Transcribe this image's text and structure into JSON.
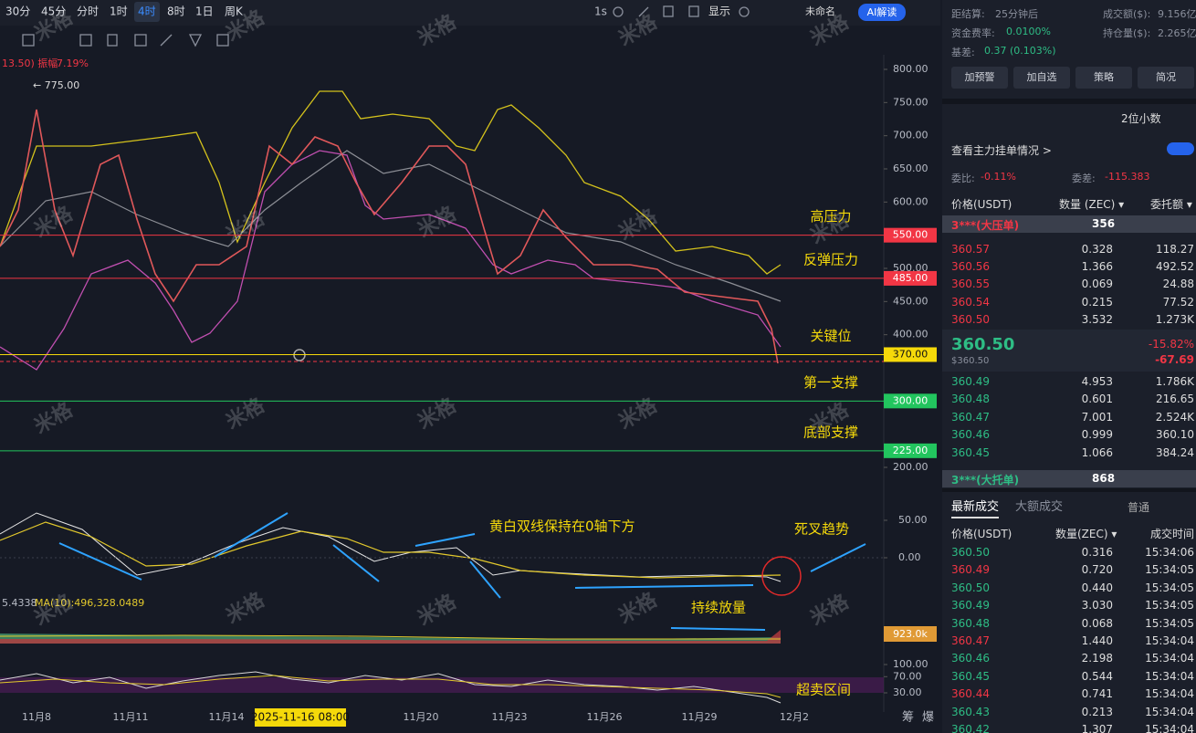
{
  "toolbar": {
    "intervals": [
      "30分",
      "45分",
      "分时",
      "1时",
      "4时",
      "8时",
      "1日",
      "周K"
    ],
    "active": 4,
    "speed": "1s",
    "display": "显示",
    "layout": "未命名",
    "ai": "AI解读"
  },
  "chart": {
    "info": "13.50)  振幅",
    "amplitude": "7.19%",
    "high_label": "← 775.00",
    "watermark": "米格",
    "price_lim": [
      800,
      200
    ],
    "price_ticks": [
      {
        "value": 800,
        "label": "800.00"
      },
      {
        "value": 750,
        "label": "750.00"
      },
      {
        "value": 700,
        "label": "700.00"
      },
      {
        "value": 650,
        "label": "650.00"
      },
      {
        "value": 600,
        "label": "600.00"
      },
      {
        "value": 500,
        "label": "500.00"
      },
      {
        "value": 450,
        "label": "450.00"
      },
      {
        "value": 400,
        "label": "400.00"
      },
      {
        "value": 200,
        "label": "200.00"
      }
    ],
    "levels": [
      {
        "value": 550,
        "label": "550.00",
        "name": "高压力",
        "color": "#f23645"
      },
      {
        "value": 485,
        "label": "485.00",
        "name": "反弹压力",
        "color": "#f23645"
      },
      {
        "value": 370,
        "label": "370.00",
        "name": "关键位",
        "color": "#f5d90a"
      },
      {
        "value": 300,
        "label": "300.00",
        "name": "第一支撑",
        "color": "#22c55e"
      },
      {
        "value": 225,
        "label": "225.00",
        "name": "底部支撑",
        "color": "#22c55e"
      }
    ],
    "macd_ticks": [
      {
        "value": 50,
        "label": "50.00"
      },
      {
        "value": 0,
        "label": "0.00"
      }
    ],
    "annotations": {
      "macd": "黄白双线保持在0轴下方",
      "cross": "死叉趋势",
      "volume": "持续放量",
      "rsi": "超卖区间"
    },
    "volume_info": "5.4338",
    "volume_ma": "MA(10):496,328.0489",
    "volume_tick": "923.0k",
    "rsi_ticks": [
      {
        "value": 100,
        "label": "100.00"
      },
      {
        "value": 70,
        "label": "70.00"
      },
      {
        "value": 30,
        "label": "30.00"
      }
    ],
    "dates": [
      "11月8",
      "11月11",
      "11月14",
      "11月20",
      "11月23",
      "11月26",
      "11月29",
      "12月2"
    ],
    "cursor_date": "2025-11-16 08:00",
    "footer": [
      "筹",
      "爆"
    ]
  },
  "market": {
    "rows": [
      [
        "距结算:",
        "25分钟后",
        "成交额($):",
        "9.156亿"
      ],
      [
        "资金费率:",
        "0.0100%",
        "持仓量($):",
        "2.265亿"
      ],
      [
        "基差:",
        "0.37 (0.103%)"
      ]
    ],
    "buttons": [
      "加预警",
      "加自选",
      "策略",
      "简况"
    ],
    "decimals": "2位小数",
    "main_orders": "查看主力挂单情况 >",
    "ratio_label": "委比:",
    "ratio": "-0.11%",
    "diff_label": "委差:",
    "diff": "-115.383"
  },
  "orderbook": {
    "headers": [
      "价格(USDT)",
      "数量 (ZEC) ▾",
      "委托额 ▾"
    ],
    "big_ask": {
      "label": "3***(大压单)",
      "qty": "356"
    },
    "asks": [
      [
        "360.57",
        "0.328",
        "118.27"
      ],
      [
        "360.56",
        "1.366",
        "492.52"
      ],
      [
        "360.55",
        "0.069",
        "24.88"
      ],
      [
        "360.54",
        "0.215",
        "77.52"
      ],
      [
        "360.50",
        "3.532",
        "1.273K"
      ]
    ],
    "last": {
      "price": "360.50",
      "usd": "$360.50",
      "change": "-15.82%",
      "delta": "-67.69"
    },
    "bids": [
      [
        "360.49",
        "4.953",
        "1.786K"
      ],
      [
        "360.48",
        "0.601",
        "216.65"
      ],
      [
        "360.47",
        "7.001",
        "2.524K"
      ],
      [
        "360.46",
        "0.999",
        "360.10"
      ],
      [
        "360.45",
        "1.066",
        "384.24"
      ]
    ],
    "big_bid": {
      "label": "3***(大托单)",
      "qty": "868"
    }
  },
  "trades": {
    "tabs": [
      "最新成交",
      "大额成交"
    ],
    "filter": "普通",
    "headers": [
      "价格(USDT)",
      "数量(ZEC) ▾",
      "成交时间"
    ],
    "rows": [
      {
        "price": "360.50",
        "qty": "0.316",
        "time": "15:34:06",
        "color": "#2ebd85"
      },
      {
        "price": "360.49",
        "qty": "0.720",
        "time": "15:34:05",
        "color": "#f23645"
      },
      {
        "price": "360.50",
        "qty": "0.440",
        "time": "15:34:05",
        "color": "#2ebd85"
      },
      {
        "price": "360.49",
        "qty": "3.030",
        "time": "15:34:05",
        "color": "#2ebd85"
      },
      {
        "price": "360.48",
        "qty": "0.068",
        "time": "15:34:05",
        "color": "#2ebd85"
      },
      {
        "price": "360.47",
        "qty": "1.440",
        "time": "15:34:04",
        "color": "#f23645"
      },
      {
        "price": "360.46",
        "qty": "2.198",
        "time": "15:34:04",
        "color": "#2ebd85"
      },
      {
        "price": "360.45",
        "qty": "0.544",
        "time": "15:34:04",
        "color": "#2ebd85"
      },
      {
        "price": "360.44",
        "qty": "0.741",
        "time": "15:34:04",
        "color": "#f23645"
      },
      {
        "price": "360.43",
        "qty": "0.213",
        "time": "15:34:04",
        "color": "#2ebd85"
      },
      {
        "price": "360.42",
        "qty": "1.307",
        "time": "15:34:04",
        "color": "#2ebd85"
      }
    ]
  }
}
